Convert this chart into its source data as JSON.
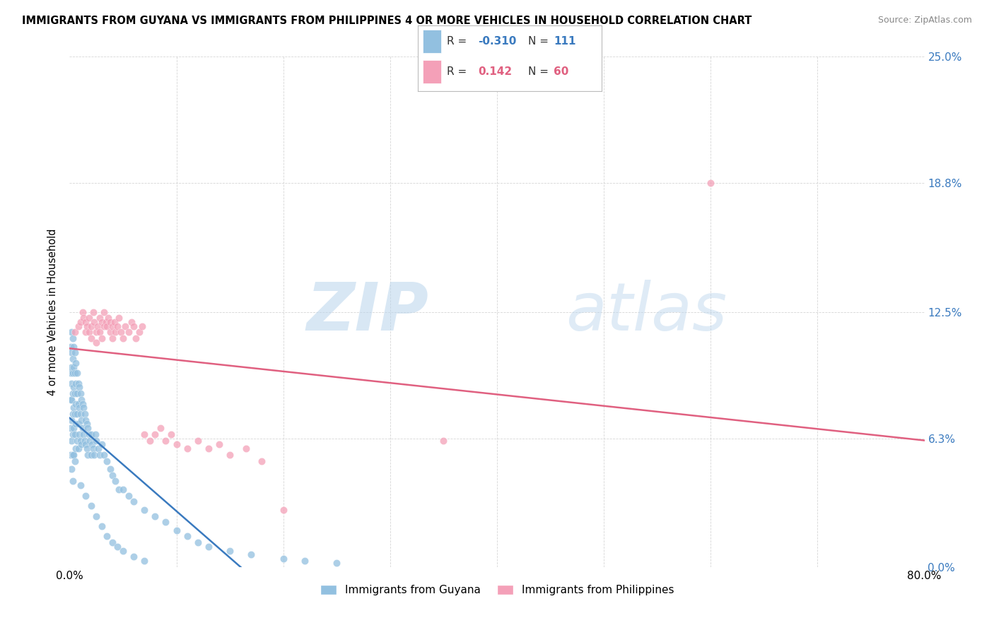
{
  "title": "IMMIGRANTS FROM GUYANA VS IMMIGRANTS FROM PHILIPPINES 4 OR MORE VEHICLES IN HOUSEHOLD CORRELATION CHART",
  "source": "Source: ZipAtlas.com",
  "ylabel_label": "4 or more Vehicles in Household",
  "guyana_color": "#92c0e0",
  "philippines_color": "#f4a0b8",
  "guyana_line_color": "#3a7abf",
  "philippines_line_color": "#e06080",
  "watermark_zip": "ZIP",
  "watermark_atlas": "atlas",
  "xlim": [
    0.0,
    0.8
  ],
  "ylim": [
    0.0,
    0.25
  ],
  "ytick_vals": [
    0.0,
    0.063,
    0.125,
    0.188,
    0.25
  ],
  "ytick_labels": [
    "0.0%",
    "6.3%",
    "12.5%",
    "18.8%",
    "25.0%"
  ],
  "xtick_vals": [
    0.0,
    0.1,
    0.2,
    0.3,
    0.4,
    0.5,
    0.6,
    0.7,
    0.8
  ],
  "xtick_labels": [
    "0.0%",
    "",
    "",
    "",
    "",
    "",
    "",
    "",
    "80.0%"
  ],
  "guyana_R": "-0.310",
  "guyana_N": "111",
  "philippines_R": "0.142",
  "philippines_N": "60",
  "guyana_x": [
    0.001,
    0.001,
    0.001,
    0.001,
    0.001,
    0.002,
    0.002,
    0.002,
    0.002,
    0.002,
    0.002,
    0.002,
    0.002,
    0.003,
    0.003,
    0.003,
    0.003,
    0.003,
    0.003,
    0.003,
    0.003,
    0.004,
    0.004,
    0.004,
    0.004,
    0.004,
    0.004,
    0.005,
    0.005,
    0.005,
    0.005,
    0.005,
    0.005,
    0.006,
    0.006,
    0.006,
    0.006,
    0.006,
    0.007,
    0.007,
    0.007,
    0.007,
    0.008,
    0.008,
    0.008,
    0.008,
    0.009,
    0.009,
    0.009,
    0.01,
    0.01,
    0.01,
    0.011,
    0.011,
    0.011,
    0.012,
    0.012,
    0.013,
    0.013,
    0.014,
    0.014,
    0.015,
    0.015,
    0.016,
    0.016,
    0.017,
    0.017,
    0.018,
    0.019,
    0.02,
    0.02,
    0.021,
    0.022,
    0.023,
    0.024,
    0.025,
    0.027,
    0.028,
    0.03,
    0.032,
    0.035,
    0.038,
    0.04,
    0.043,
    0.046,
    0.05,
    0.055,
    0.06,
    0.07,
    0.08,
    0.09,
    0.1,
    0.11,
    0.12,
    0.13,
    0.15,
    0.17,
    0.2,
    0.22,
    0.25,
    0.01,
    0.015,
    0.02,
    0.025,
    0.03,
    0.035,
    0.04,
    0.045,
    0.05,
    0.06,
    0.07
  ],
  "guyana_y": [
    0.108,
    0.095,
    0.082,
    0.068,
    0.055,
    0.115,
    0.105,
    0.098,
    0.09,
    0.082,
    0.072,
    0.062,
    0.048,
    0.112,
    0.102,
    0.095,
    0.085,
    0.075,
    0.065,
    0.055,
    0.042,
    0.108,
    0.098,
    0.088,
    0.078,
    0.068,
    0.055,
    0.105,
    0.095,
    0.085,
    0.075,
    0.065,
    0.052,
    0.1,
    0.09,
    0.08,
    0.07,
    0.058,
    0.095,
    0.085,
    0.075,
    0.062,
    0.09,
    0.08,
    0.07,
    0.058,
    0.088,
    0.078,
    0.065,
    0.085,
    0.075,
    0.062,
    0.082,
    0.072,
    0.06,
    0.08,
    0.068,
    0.078,
    0.065,
    0.075,
    0.062,
    0.072,
    0.06,
    0.07,
    0.058,
    0.068,
    0.055,
    0.065,
    0.062,
    0.065,
    0.055,
    0.06,
    0.058,
    0.055,
    0.065,
    0.062,
    0.058,
    0.055,
    0.06,
    0.055,
    0.052,
    0.048,
    0.045,
    0.042,
    0.038,
    0.038,
    0.035,
    0.032,
    0.028,
    0.025,
    0.022,
    0.018,
    0.015,
    0.012,
    0.01,
    0.008,
    0.006,
    0.004,
    0.003,
    0.002,
    0.04,
    0.035,
    0.03,
    0.025,
    0.02,
    0.015,
    0.012,
    0.01,
    0.008,
    0.005,
    0.003
  ],
  "philippines_x": [
    0.005,
    0.008,
    0.01,
    0.012,
    0.013,
    0.015,
    0.015,
    0.016,
    0.018,
    0.018,
    0.02,
    0.02,
    0.022,
    0.023,
    0.025,
    0.025,
    0.026,
    0.028,
    0.028,
    0.03,
    0.03,
    0.032,
    0.032,
    0.034,
    0.035,
    0.036,
    0.038,
    0.038,
    0.04,
    0.04,
    0.042,
    0.043,
    0.045,
    0.046,
    0.048,
    0.05,
    0.052,
    0.055,
    0.058,
    0.06,
    0.062,
    0.065,
    0.068,
    0.07,
    0.075,
    0.08,
    0.085,
    0.09,
    0.095,
    0.1,
    0.11,
    0.12,
    0.13,
    0.14,
    0.15,
    0.165,
    0.18,
    0.2,
    0.35,
    0.6
  ],
  "philippines_y": [
    0.115,
    0.118,
    0.12,
    0.125,
    0.122,
    0.115,
    0.12,
    0.118,
    0.122,
    0.115,
    0.118,
    0.112,
    0.125,
    0.12,
    0.115,
    0.11,
    0.118,
    0.122,
    0.115,
    0.12,
    0.112,
    0.118,
    0.125,
    0.12,
    0.118,
    0.122,
    0.115,
    0.12,
    0.118,
    0.112,
    0.12,
    0.115,
    0.118,
    0.122,
    0.115,
    0.112,
    0.118,
    0.115,
    0.12,
    0.118,
    0.112,
    0.115,
    0.118,
    0.065,
    0.062,
    0.065,
    0.068,
    0.062,
    0.065,
    0.06,
    0.058,
    0.062,
    0.058,
    0.06,
    0.055,
    0.058,
    0.052,
    0.028,
    0.062,
    0.188
  ]
}
